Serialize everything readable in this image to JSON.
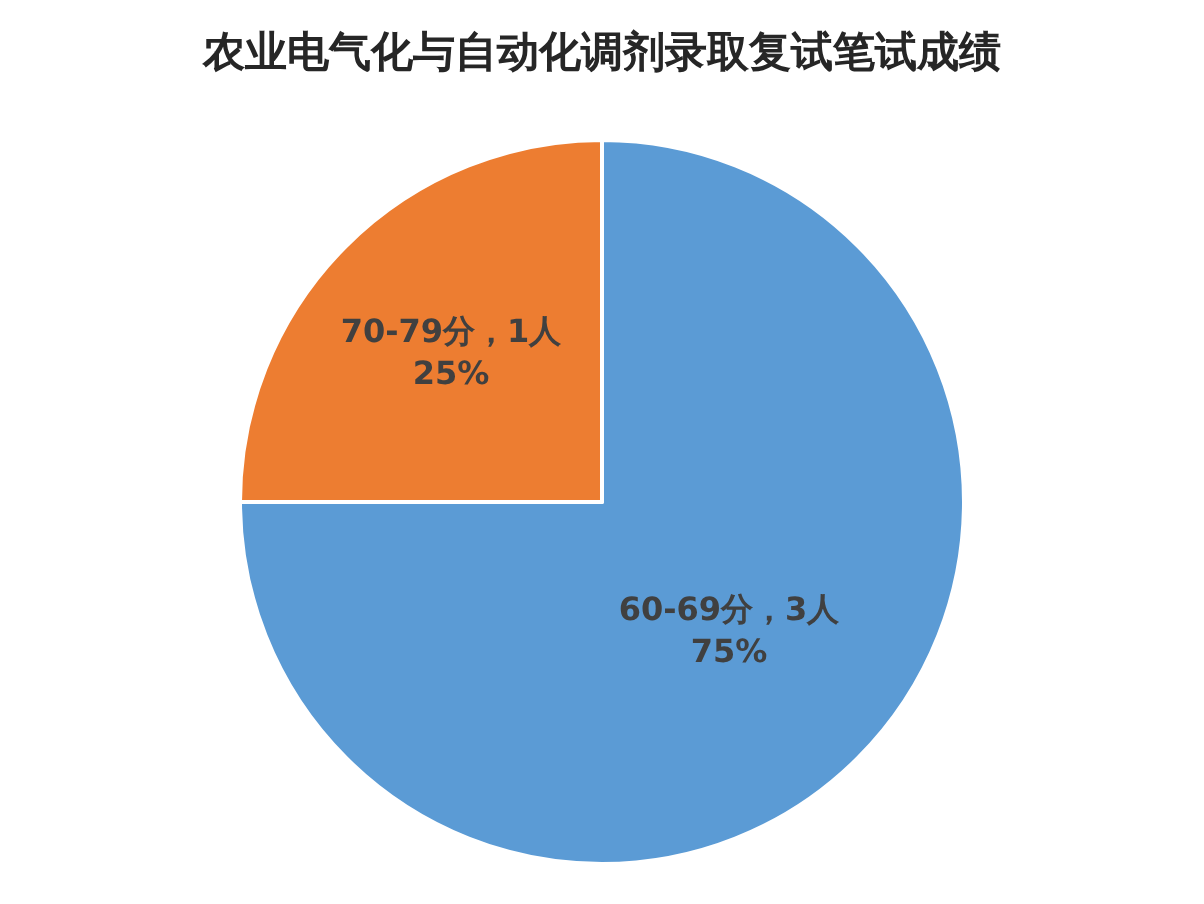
{
  "chart_data": {
    "type": "pie",
    "title": "农业电气化与自动化调剂录取复试笔试成绩",
    "categories": [
      "60-69分，3人",
      "70-79分，1人"
    ],
    "values": [
      75,
      25
    ],
    "colors": [
      "#5b9bd5",
      "#ed7d31"
    ],
    "value_labels": [
      "75%",
      "25%"
    ],
    "legend": false
  }
}
